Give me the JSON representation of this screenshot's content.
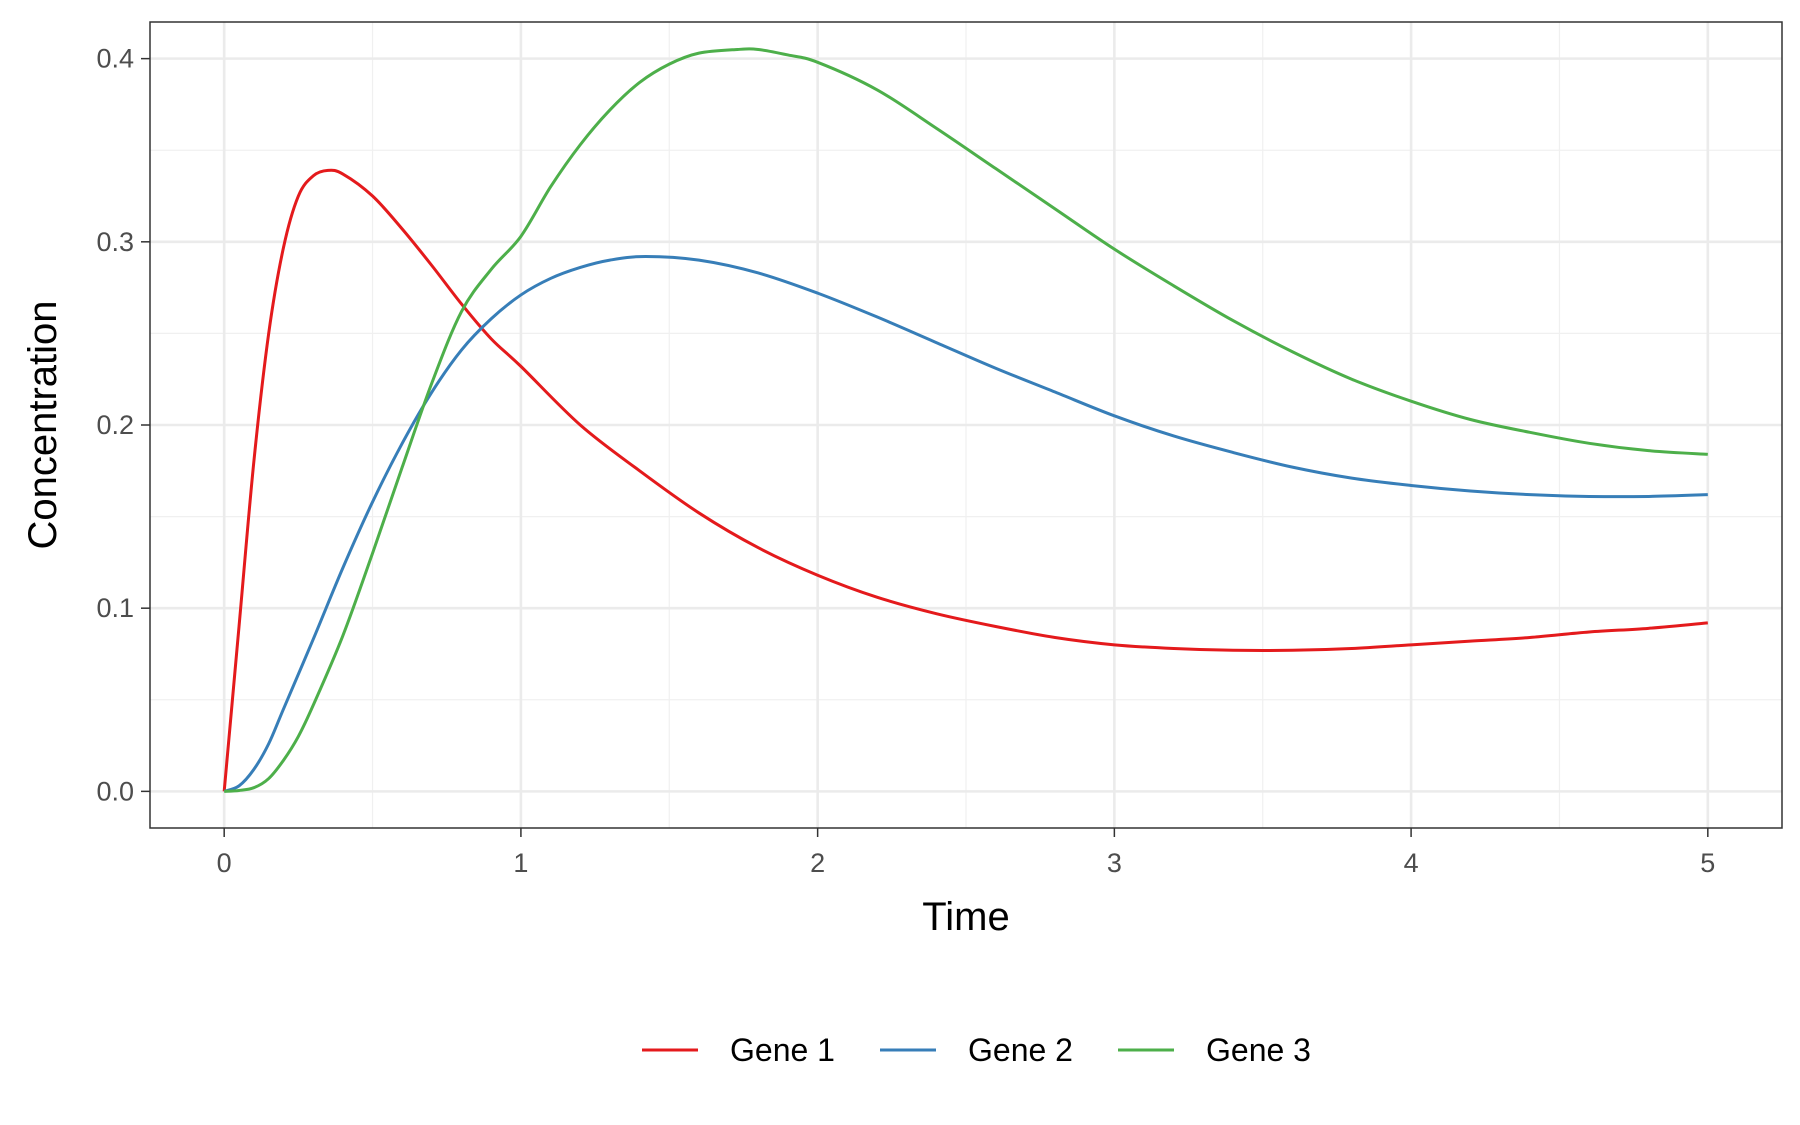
{
  "chart_data": {
    "type": "line",
    "xlabel": "Time",
    "ylabel": "Concentration",
    "xlim": [
      -0.25,
      5.25
    ],
    "ylim": [
      -0.02,
      0.42
    ],
    "x_ticks": [
      0,
      1,
      2,
      3,
      4,
      5
    ],
    "x_tick_labels": [
      "0",
      "1",
      "2",
      "3",
      "4",
      "5"
    ],
    "y_ticks": [
      0.0,
      0.1,
      0.2,
      0.3,
      0.4
    ],
    "y_tick_labels": [
      "0.0",
      "0.1",
      "0.2",
      "0.3",
      "0.4"
    ],
    "grid": true,
    "legend_position": "bottom",
    "series": [
      {
        "name": "Gene 1",
        "color": "#e41a1c",
        "points": [
          [
            0,
            0
          ],
          [
            0.05,
            0.09
          ],
          [
            0.1,
            0.18
          ],
          [
            0.15,
            0.25
          ],
          [
            0.2,
            0.297
          ],
          [
            0.25,
            0.325
          ],
          [
            0.3,
            0.336
          ],
          [
            0.35,
            0.339
          ],
          [
            0.4,
            0.337
          ],
          [
            0.5,
            0.325
          ],
          [
            0.6,
            0.307
          ],
          [
            0.7,
            0.287
          ],
          [
            0.8,
            0.266
          ],
          [
            0.9,
            0.247
          ],
          [
            1.0,
            0.232
          ],
          [
            1.2,
            0.2
          ],
          [
            1.4,
            0.175
          ],
          [
            1.6,
            0.152
          ],
          [
            1.8,
            0.133
          ],
          [
            2.0,
            0.118
          ],
          [
            2.2,
            0.106
          ],
          [
            2.4,
            0.097
          ],
          [
            2.6,
            0.09
          ],
          [
            2.8,
            0.084
          ],
          [
            3.0,
            0.08
          ],
          [
            3.2,
            0.078
          ],
          [
            3.4,
            0.077
          ],
          [
            3.6,
            0.077
          ],
          [
            3.8,
            0.078
          ],
          [
            4.0,
            0.08
          ],
          [
            4.2,
            0.082
          ],
          [
            4.4,
            0.084
          ],
          [
            4.6,
            0.087
          ],
          [
            4.8,
            0.089
          ],
          [
            5.0,
            0.092
          ]
        ]
      },
      {
        "name": "Gene 2",
        "color": "#377eb8",
        "points": [
          [
            0,
            0
          ],
          [
            0.05,
            0.003
          ],
          [
            0.1,
            0.012
          ],
          [
            0.15,
            0.026
          ],
          [
            0.2,
            0.045
          ],
          [
            0.3,
            0.083
          ],
          [
            0.4,
            0.122
          ],
          [
            0.5,
            0.158
          ],
          [
            0.6,
            0.19
          ],
          [
            0.7,
            0.218
          ],
          [
            0.8,
            0.241
          ],
          [
            0.9,
            0.258
          ],
          [
            1.0,
            0.271
          ],
          [
            1.1,
            0.28
          ],
          [
            1.2,
            0.286
          ],
          [
            1.3,
            0.29
          ],
          [
            1.42,
            0.292
          ],
          [
            1.6,
            0.29
          ],
          [
            1.8,
            0.283
          ],
          [
            2.0,
            0.272
          ],
          [
            2.2,
            0.259
          ],
          [
            2.4,
            0.245
          ],
          [
            2.6,
            0.231
          ],
          [
            2.8,
            0.218
          ],
          [
            3.0,
            0.205
          ],
          [
            3.2,
            0.194
          ],
          [
            3.4,
            0.185
          ],
          [
            3.6,
            0.177
          ],
          [
            3.8,
            0.171
          ],
          [
            4.0,
            0.167
          ],
          [
            4.2,
            0.164
          ],
          [
            4.4,
            0.162
          ],
          [
            4.6,
            0.161
          ],
          [
            4.8,
            0.161
          ],
          [
            5.0,
            0.162
          ]
        ]
      },
      {
        "name": "Gene 3",
        "color": "#4daf4a",
        "points": [
          [
            0,
            0
          ],
          [
            0.05,
            0.0005
          ],
          [
            0.1,
            0.002
          ],
          [
            0.15,
            0.007
          ],
          [
            0.2,
            0.017
          ],
          [
            0.25,
            0.03
          ],
          [
            0.3,
            0.047
          ],
          [
            0.4,
            0.085
          ],
          [
            0.5,
            0.13
          ],
          [
            0.6,
            0.177
          ],
          [
            0.7,
            0.223
          ],
          [
            0.8,
            0.262
          ],
          [
            0.9,
            0.285
          ],
          [
            1.0,
            0.303
          ],
          [
            1.1,
            0.33
          ],
          [
            1.2,
            0.353
          ],
          [
            1.3,
            0.372
          ],
          [
            1.4,
            0.387
          ],
          [
            1.5,
            0.397
          ],
          [
            1.6,
            0.403
          ],
          [
            1.73,
            0.405
          ],
          [
            1.8,
            0.405
          ],
          [
            1.9,
            0.402
          ],
          [
            2.0,
            0.398
          ],
          [
            2.2,
            0.383
          ],
          [
            2.4,
            0.362
          ],
          [
            2.6,
            0.34
          ],
          [
            2.8,
            0.318
          ],
          [
            3.0,
            0.296
          ],
          [
            3.2,
            0.276
          ],
          [
            3.4,
            0.257
          ],
          [
            3.6,
            0.24
          ],
          [
            3.8,
            0.225
          ],
          [
            4.0,
            0.213
          ],
          [
            4.2,
            0.203
          ],
          [
            4.4,
            0.196
          ],
          [
            4.6,
            0.19
          ],
          [
            4.8,
            0.186
          ],
          [
            5.0,
            0.184
          ]
        ]
      }
    ]
  }
}
